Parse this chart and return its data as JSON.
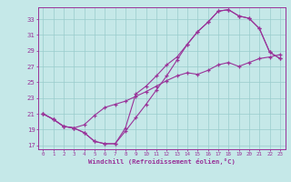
{
  "xlabel": "Windchill (Refroidissement éolien,°C)",
  "bg_color": "#c5e8e8",
  "line_color": "#993399",
  "grid_color": "#99cccc",
  "xlim": [
    -0.5,
    23.5
  ],
  "ylim": [
    16.5,
    34.5
  ],
  "yticks": [
    17,
    19,
    21,
    23,
    25,
    27,
    29,
    31,
    33
  ],
  "xticks": [
    0,
    1,
    2,
    3,
    4,
    5,
    6,
    7,
    8,
    9,
    10,
    11,
    12,
    13,
    14,
    15,
    16,
    17,
    18,
    19,
    20,
    21,
    22,
    23
  ],
  "line1_x": [
    0,
    1,
    2,
    3,
    4,
    5,
    6,
    7,
    8,
    9,
    10,
    11,
    12,
    13,
    14,
    15,
    16,
    17,
    18,
    19,
    20,
    21,
    22,
    23
  ],
  "line1_y": [
    21.0,
    20.3,
    19.4,
    19.2,
    18.6,
    17.5,
    17.2,
    17.2,
    18.8,
    20.5,
    22.2,
    24.0,
    25.8,
    27.8,
    29.8,
    31.4,
    32.6,
    34.0,
    34.2,
    33.4,
    33.1,
    31.8,
    28.8,
    28.0
  ],
  "line2_x": [
    0,
    1,
    2,
    3,
    4,
    5,
    6,
    7,
    8,
    9,
    10,
    11,
    12,
    13,
    14,
    15,
    16,
    17,
    18,
    19,
    20,
    21,
    22,
    23
  ],
  "line2_y": [
    21.0,
    20.3,
    19.4,
    19.2,
    18.6,
    17.5,
    17.2,
    17.2,
    19.2,
    23.5,
    24.5,
    25.8,
    27.2,
    28.2,
    29.8,
    31.4,
    32.6,
    34.0,
    34.2,
    33.4,
    33.1,
    31.8,
    28.8,
    28.0
  ],
  "line3_x": [
    0,
    1,
    2,
    3,
    4,
    5,
    6,
    7,
    8,
    9,
    10,
    11,
    12,
    13,
    14,
    15,
    16,
    17,
    18,
    19,
    20,
    21,
    22,
    23
  ],
  "line3_y": [
    21.0,
    20.3,
    19.4,
    19.2,
    19.6,
    20.8,
    21.8,
    22.2,
    22.6,
    23.2,
    23.8,
    24.5,
    25.2,
    25.8,
    26.2,
    26.0,
    26.5,
    27.2,
    27.5,
    27.0,
    27.5,
    28.0,
    28.2,
    28.5
  ]
}
